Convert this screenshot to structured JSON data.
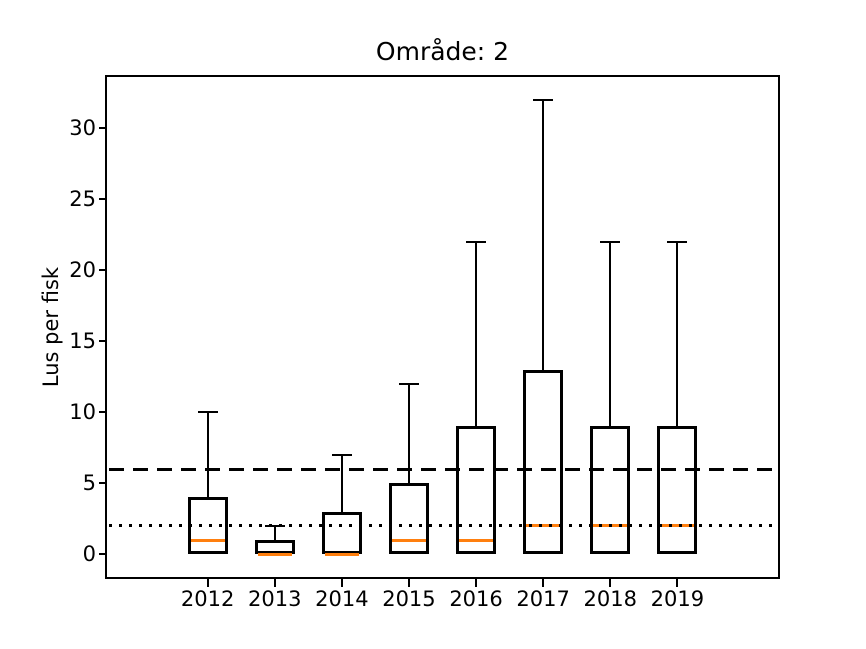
{
  "chart_data": {
    "type": "boxplot",
    "title": "Område: 2",
    "xlabel": "",
    "ylabel": "Lus per fisk",
    "categories": [
      "2012",
      "2013",
      "2014",
      "2015",
      "2016",
      "2017",
      "2018",
      "2019"
    ],
    "yticks": [
      0,
      5,
      10,
      15,
      20,
      25,
      30
    ],
    "ylim": [
      -1.6,
      33.6
    ],
    "xlim": [
      -0.5,
      9.5
    ],
    "grid": false,
    "legend": null,
    "boxes": [
      {
        "category": "2012",
        "whisker_low": 0,
        "q1": 0,
        "median": 1,
        "q3": 4,
        "whisker_high": 10
      },
      {
        "category": "2013",
        "whisker_low": 0,
        "q1": 0,
        "median": 0,
        "q3": 1,
        "whisker_high": 2
      },
      {
        "category": "2014",
        "whisker_low": 0,
        "q1": 0,
        "median": 0,
        "q3": 3,
        "whisker_high": 7
      },
      {
        "category": "2015",
        "whisker_low": 0,
        "q1": 0,
        "median": 1,
        "q3": 5,
        "whisker_high": 12
      },
      {
        "category": "2016",
        "whisker_low": 0,
        "q1": 0,
        "median": 1,
        "q3": 9,
        "whisker_high": 22
      },
      {
        "category": "2017",
        "whisker_low": 0,
        "q1": 0,
        "median": 2,
        "q3": 13,
        "whisker_high": 32
      },
      {
        "category": "2018",
        "whisker_low": 0,
        "q1": 0,
        "median": 2,
        "q3": 9,
        "whisker_high": 22
      },
      {
        "category": "2019",
        "whisker_low": 0,
        "q1": 0,
        "median": 2,
        "q3": 9,
        "whisker_high": 22
      }
    ],
    "reference_lines": [
      {
        "value": 6,
        "style": "dashed",
        "color": "#000000"
      },
      {
        "value": 2,
        "style": "dotted",
        "color": "#000000"
      }
    ],
    "colors": {
      "box_edge": "#000000",
      "whisker": "#000000",
      "median": "#ff7f0e",
      "background": "#ffffff"
    }
  }
}
